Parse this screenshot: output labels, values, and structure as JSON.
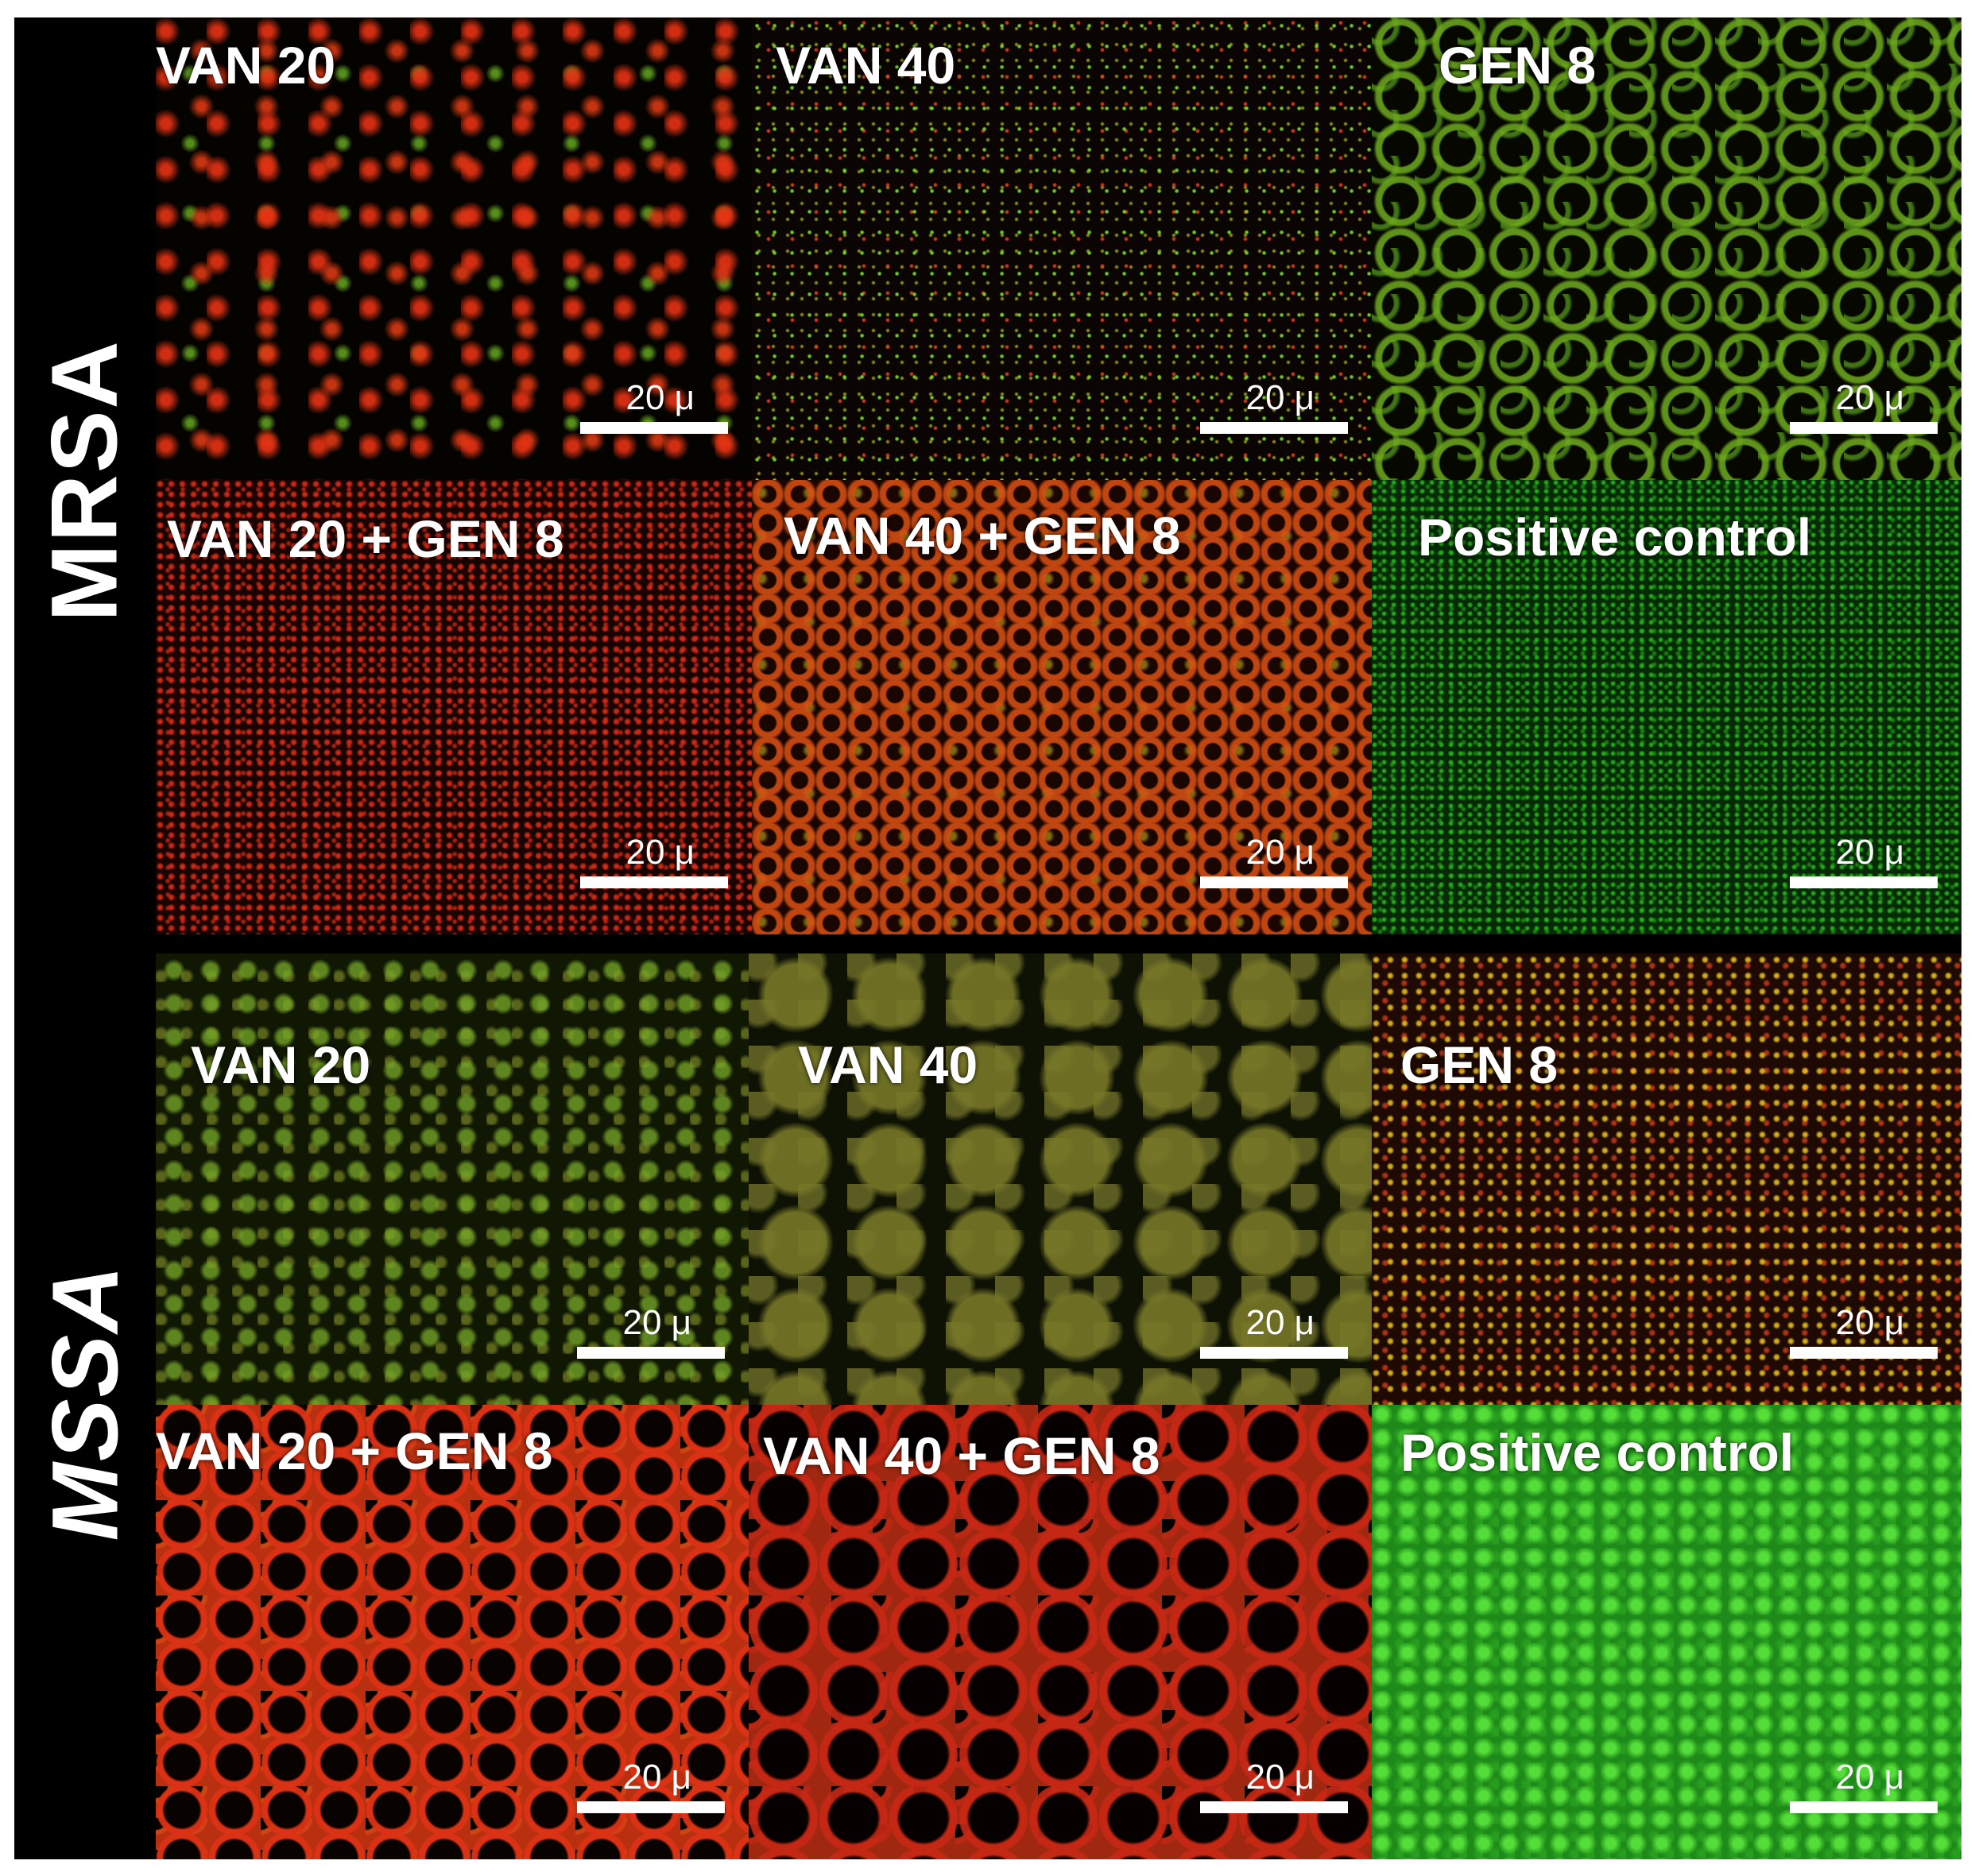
{
  "sections": {
    "mrsa": {
      "label": "MRSA",
      "panels": [
        {
          "title": "VAN 20",
          "scale": "20 μ"
        },
        {
          "title": "VAN 40",
          "scale": "20 μ"
        },
        {
          "title": "GEN 8",
          "scale": "20 μ"
        },
        {
          "title": "VAN 20 + GEN 8",
          "scale": "20 μ"
        },
        {
          "title": "VAN 40 + GEN 8",
          "scale": "20 μ"
        },
        {
          "title": "Positive control",
          "scale": "20 μ"
        }
      ]
    },
    "mssa": {
      "label": "MSSA",
      "panels": [
        {
          "title": "VAN 20",
          "scale": "20 μ"
        },
        {
          "title": "VAN 40",
          "scale": "20 μ"
        },
        {
          "title": "GEN 8",
          "scale": "20 μ"
        },
        {
          "title": "VAN 20 + GEN 8",
          "scale": "20 μ"
        },
        {
          "title": "VAN 40 + GEN 8",
          "scale": "20 μ"
        },
        {
          "title": "Positive control",
          "scale": "20 μ"
        }
      ]
    }
  }
}
